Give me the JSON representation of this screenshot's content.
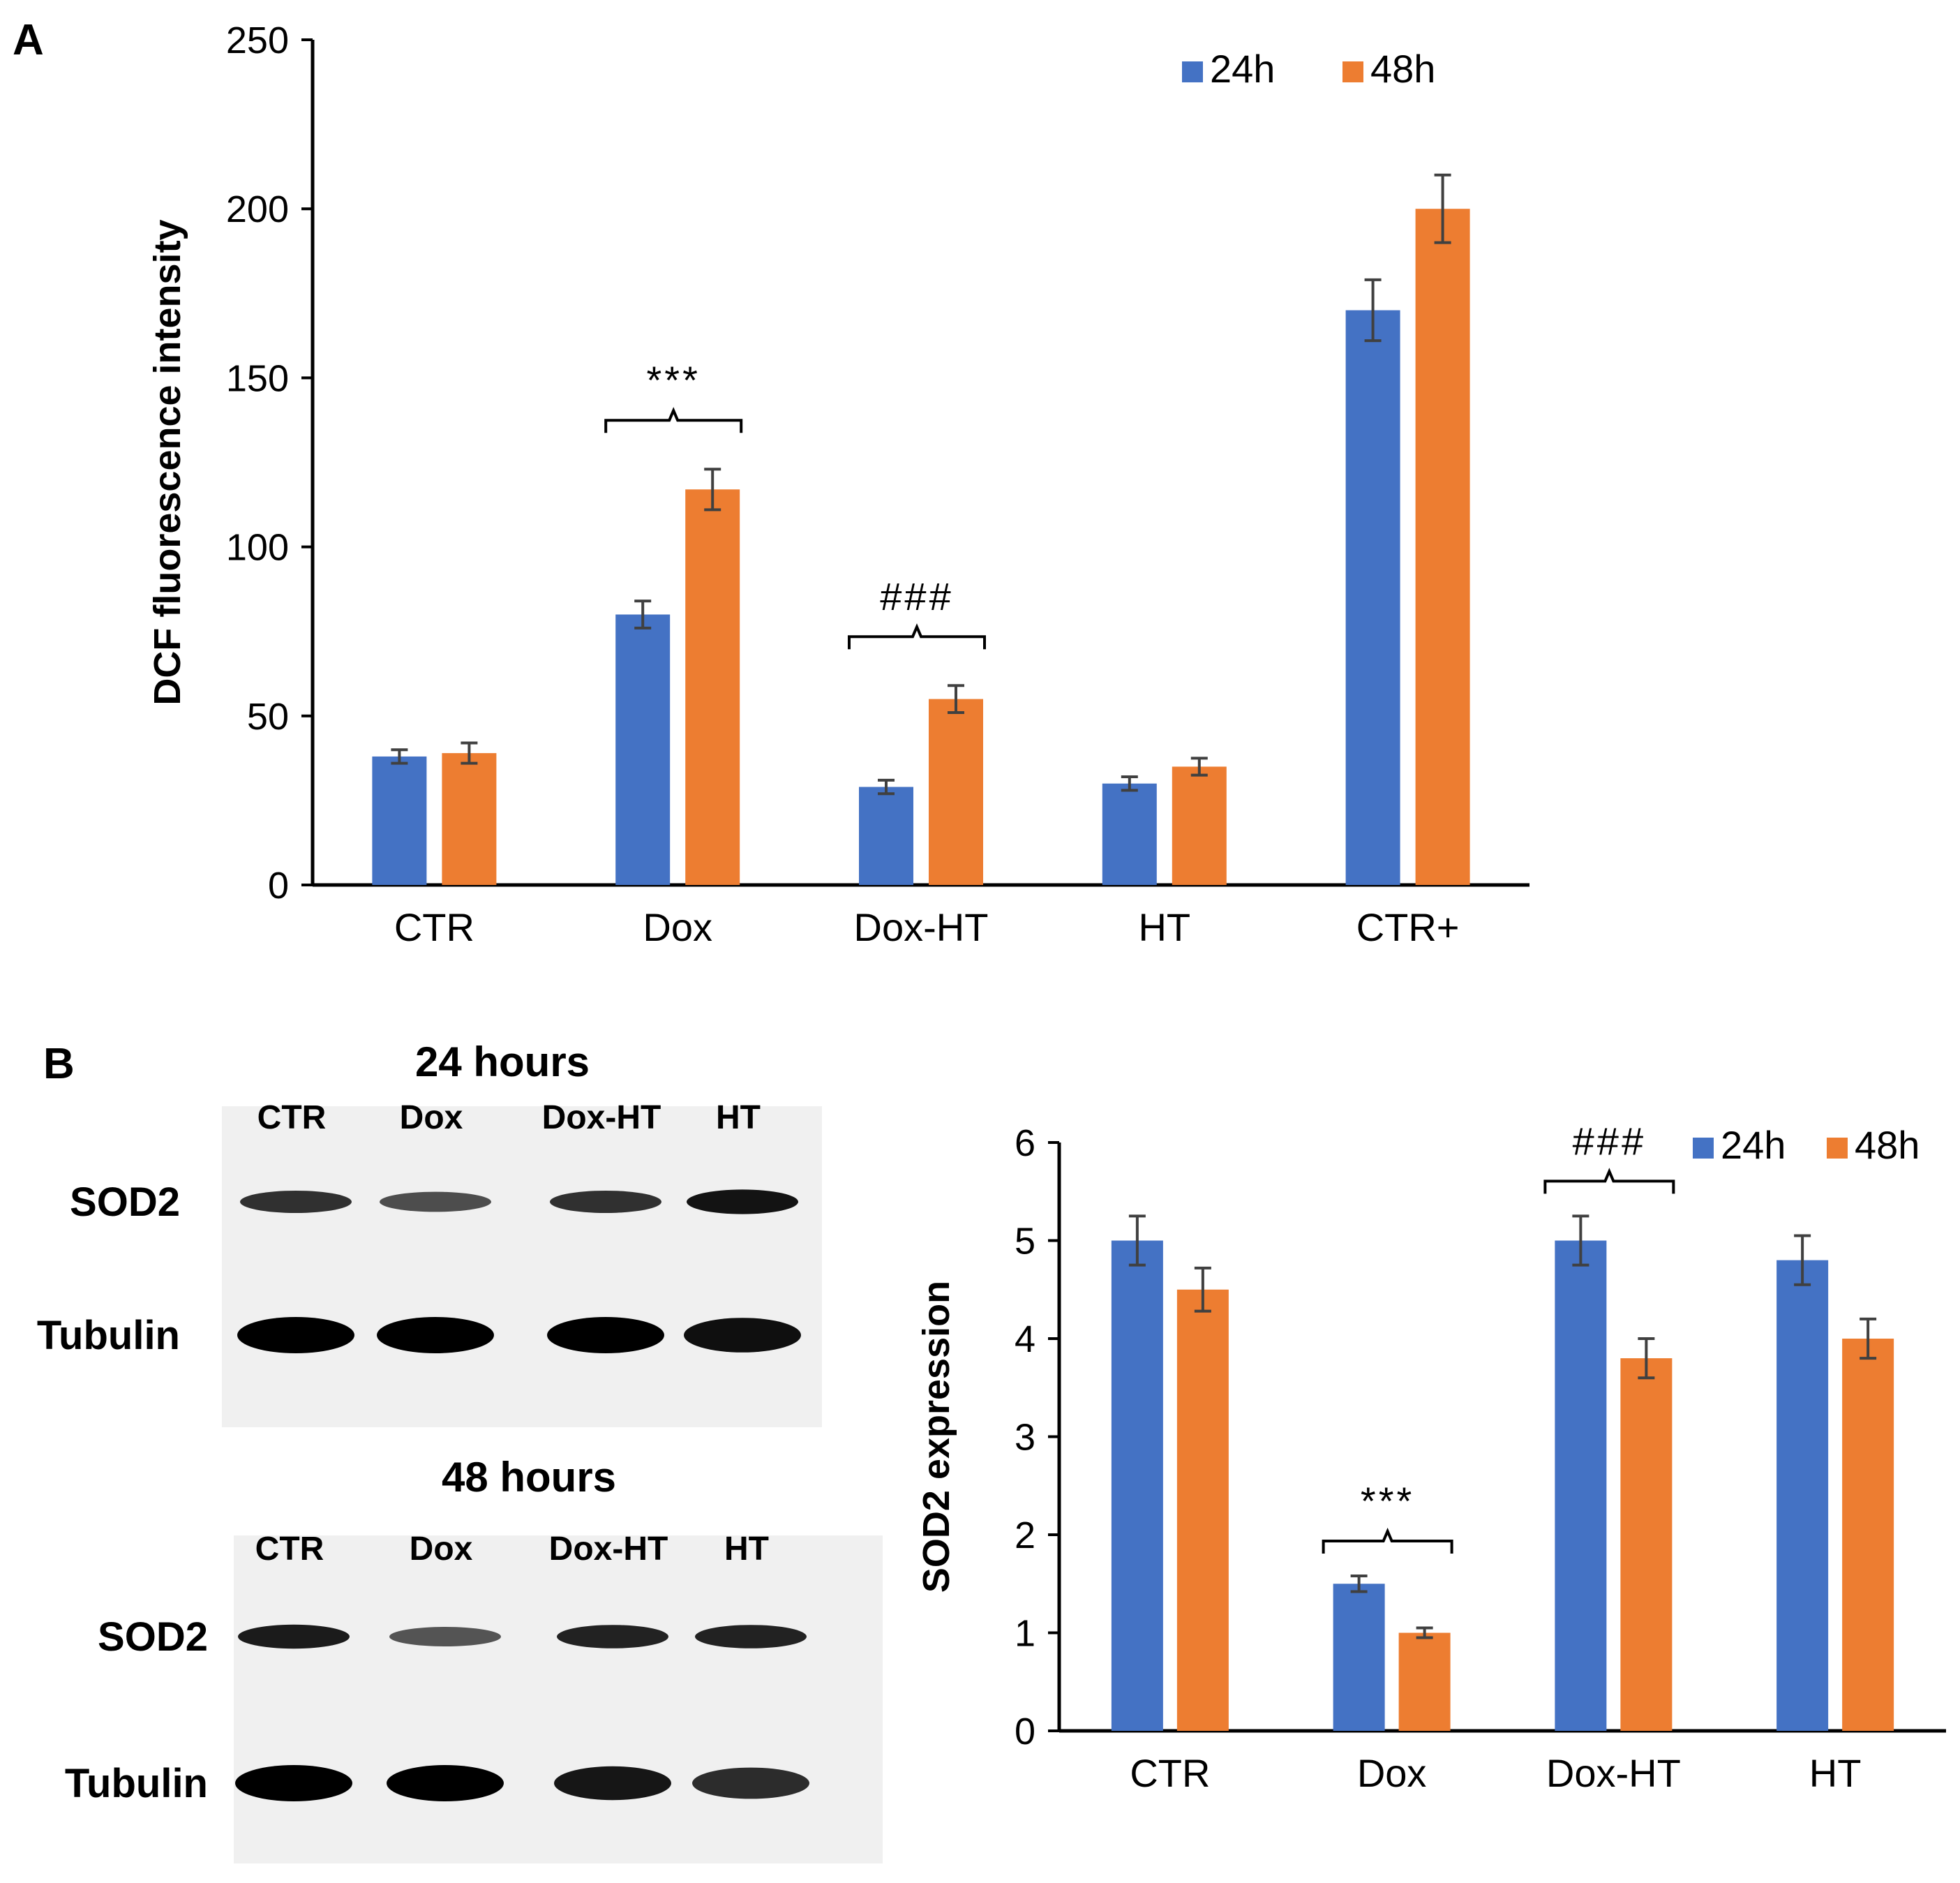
{
  "figure": {
    "panel_a_label": "A",
    "panel_b_label": "B"
  },
  "colors": {
    "series_24h": "#4472C4",
    "series_48h": "#ED7D31",
    "error_bar": "#404040"
  },
  "blots": [
    {
      "title": "24 hours",
      "lanes": [
        "CTR",
        "Dox",
        "Dox-HT",
        "HT"
      ],
      "rows": [
        "SOD2",
        "Tubulin"
      ],
      "sod2_band_intensity": [
        0.75,
        0.55,
        0.75,
        0.95
      ],
      "tubulin_band_intensity": [
        1.0,
        1.0,
        1.0,
        0.9
      ]
    },
    {
      "title": "48 hours",
      "lanes": [
        "CTR",
        "Dox",
        "Dox-HT",
        "HT"
      ],
      "rows": [
        "SOD2",
        "Tubulin"
      ],
      "sod2_band_intensity": [
        0.9,
        0.5,
        0.85,
        0.85
      ],
      "tubulin_band_intensity": [
        1.0,
        1.0,
        0.85,
        0.7
      ]
    }
  ],
  "chart_data": [
    {
      "type": "bar",
      "panel": "A",
      "title": "",
      "xlabel": "",
      "ylabel": "DCF fluorescence intensity",
      "categories": [
        "CTR",
        "Dox",
        "Dox-HT",
        "HT",
        "CTR+"
      ],
      "series": [
        {
          "name": "24h",
          "values": [
            38,
            80,
            29,
            30,
            170
          ],
          "errors": [
            2,
            4,
            2,
            2,
            9
          ]
        },
        {
          "name": "48h",
          "values": [
            39,
            117,
            55,
            35,
            200
          ],
          "errors": [
            3,
            6,
            4,
            2.5,
            10
          ]
        }
      ],
      "ylim": [
        0,
        250
      ],
      "yticks": [
        0,
        50,
        100,
        150,
        200,
        250
      ],
      "grid": false,
      "legend": "top-right",
      "annotations": [
        {
          "category": "Dox",
          "text": "***"
        },
        {
          "category": "Dox-HT",
          "text": "###"
        }
      ]
    },
    {
      "type": "bar",
      "panel": "B",
      "title": "",
      "xlabel": "",
      "ylabel": "SOD2 expression",
      "categories": [
        "CTR",
        "Dox",
        "Dox-HT",
        "HT"
      ],
      "series": [
        {
          "name": "24h",
          "values": [
            5.0,
            1.5,
            5.0,
            4.8
          ],
          "errors": [
            0.25,
            0.08,
            0.25,
            0.25
          ]
        },
        {
          "name": "48h",
          "values": [
            4.5,
            1.0,
            3.8,
            4.0
          ],
          "errors": [
            0.22,
            0.05,
            0.2,
            0.2
          ]
        }
      ],
      "ylim": [
        0,
        6
      ],
      "yticks": [
        0,
        1,
        2,
        3,
        4,
        5,
        6
      ],
      "grid": false,
      "legend": "top-right",
      "annotations": [
        {
          "category": "Dox",
          "text": "***"
        },
        {
          "category": "Dox-HT",
          "text": "###"
        }
      ]
    }
  ]
}
